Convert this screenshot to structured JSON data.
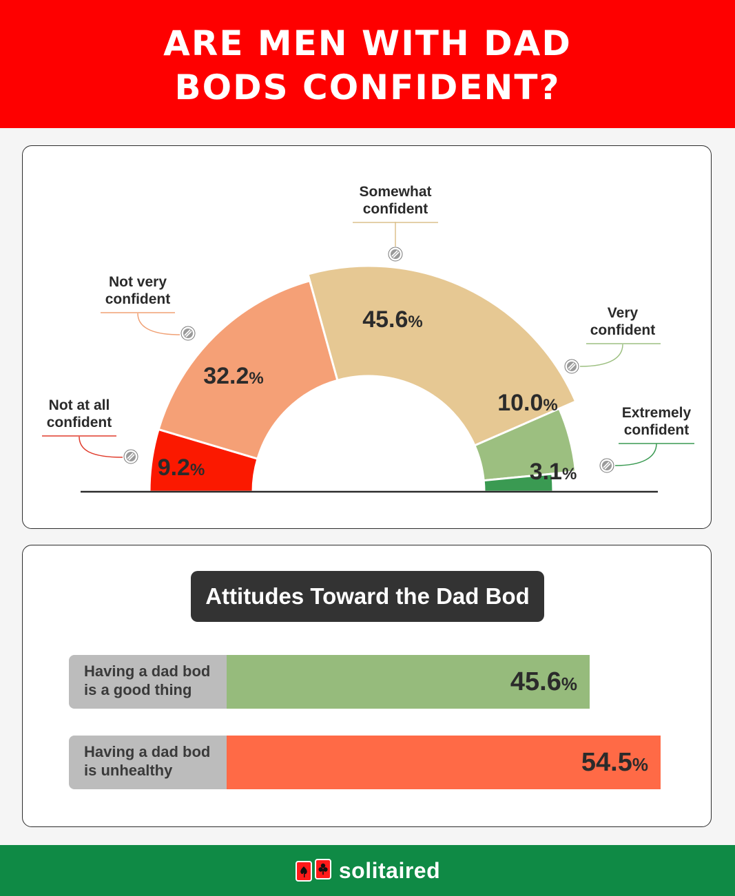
{
  "header": {
    "title": "ARE MEN WITH DAD BODS CONFIDENT?"
  },
  "chart_data": [
    {
      "type": "pie",
      "style": "half-donut",
      "categories": [
        "Not at all confident",
        "Not very confident",
        "Somewhat confident",
        "Very confident",
        "Extremely confident"
      ],
      "values": [
        9.2,
        32.2,
        45.6,
        10.0,
        3.1
      ],
      "value_labels": [
        "9.2",
        "32.2",
        "45.6",
        "10.0",
        "3.1"
      ],
      "unit": "%",
      "colors": [
        "#fb1900",
        "#f5a076",
        "#e6c893",
        "#9cbf80",
        "#3a9a52"
      ],
      "label_lines": [
        [
          "Not at all",
          "confident"
        ],
        [
          "Not very",
          "confident"
        ],
        [
          "Somewhat",
          "confident"
        ],
        [
          "Very",
          "confident"
        ],
        [
          "Extremely",
          "confident"
        ]
      ]
    },
    {
      "type": "bar",
      "orientation": "horizontal",
      "title": "Attitudes Toward the Dad Bod",
      "categories": [
        "Having a dad bod is a good thing",
        "Having a dad bod is unhealthy"
      ],
      "label_lines": [
        [
          "Having a dad bod",
          "is a good thing"
        ],
        [
          "Having a dad bod",
          "is unhealthy"
        ]
      ],
      "values": [
        45.6,
        54.5
      ],
      "value_labels": [
        "45.6",
        "54.5"
      ],
      "unit": "%",
      "colors": [
        "#96bb7c",
        "#ff6a46"
      ]
    }
  ],
  "footer": {
    "brand": "solitaired"
  }
}
